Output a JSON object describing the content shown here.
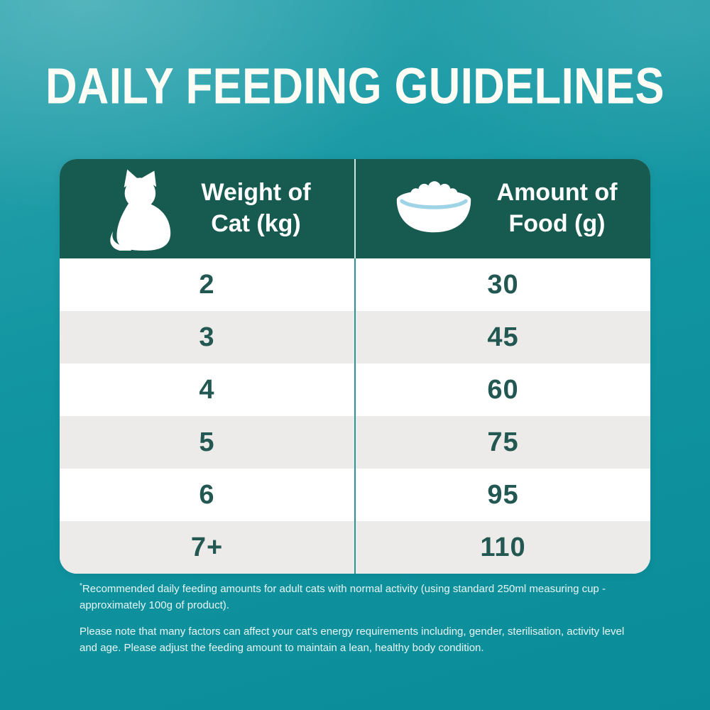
{
  "title": "DAILY FEEDING GUIDELINES",
  "table": {
    "columns": [
      {
        "icon": "cat-icon",
        "line1": "Weight of",
        "line2": "Cat (kg)"
      },
      {
        "icon": "bowl-icon",
        "line1": "Amount of",
        "line2": "Food (g)"
      }
    ],
    "rows": [
      {
        "weight_kg": "2",
        "food_g": "30"
      },
      {
        "weight_kg": "3",
        "food_g": "45"
      },
      {
        "weight_kg": "4",
        "food_g": "60"
      },
      {
        "weight_kg": "5",
        "food_g": "75"
      },
      {
        "weight_kg": "6",
        "food_g": "95"
      },
      {
        "weight_kg": "7+",
        "food_g": "110"
      }
    ]
  },
  "footnotes": [
    {
      "marker": "*",
      "text": "Recommended daily feeding amounts for adult cats with normal activity (using standard 250ml measuring cup - approximately 100g of product)."
    },
    {
      "marker": "",
      "text": "Please note that many factors can affect your cat's energy requirements including, gender, sterilisation, activity level and age. Please adjust the feeding amount to maintain a lean, healthy body condition."
    }
  ],
  "colors": {
    "background_teal": "#1195a1",
    "header_green": "#175a50",
    "row_alt_gray": "#ECEBE9",
    "digit_teal": "#235852",
    "body_divider_teal": "#2d939a",
    "header_divider_light": "#c9e4e1",
    "title_white": "#fdfdf6",
    "bowl_inner_line_blue": "#9fd4e6"
  },
  "chart_data": {
    "type": "table",
    "title": "DAILY FEEDING GUIDELINES",
    "columns": [
      "Weight of Cat (kg)",
      "Amount of Food (g)"
    ],
    "rows": [
      [
        "2",
        "30"
      ],
      [
        "3",
        "45"
      ],
      [
        "4",
        "60"
      ],
      [
        "5",
        "75"
      ],
      [
        "6",
        "95"
      ],
      [
        "7+",
        "110"
      ]
    ],
    "notes": [
      "*Recommended daily feeding amounts for adult cats with normal activity (using standard 250ml measuring cup - approximately 100g of product).",
      "Please note that many factors can affect your cat's energy requirements including, gender, sterilisation, activity level and age. Please adjust the feeding amount to maintain a lean, healthy body condition."
    ]
  }
}
